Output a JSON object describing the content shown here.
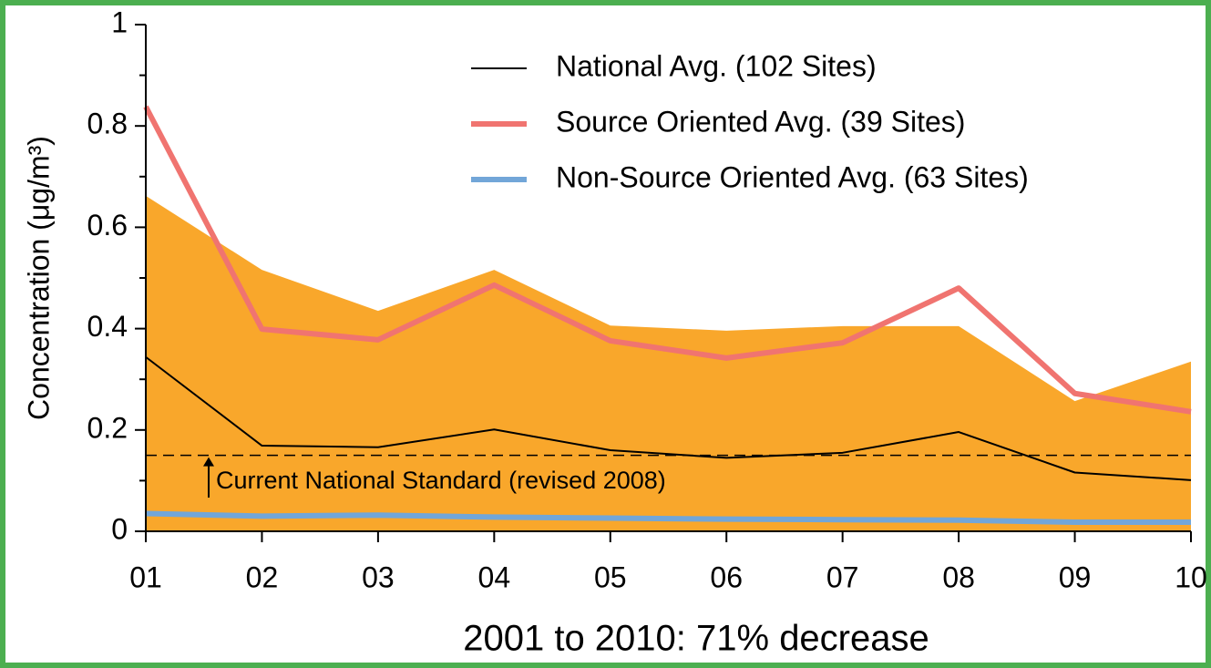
{
  "chart_data": {
    "type": "line",
    "x_label": "2001 to 2010: 71% decrease",
    "y_label": "Concentration (μg/m³)",
    "categories": [
      "01",
      "02",
      "03",
      "04",
      "05",
      "06",
      "07",
      "08",
      "09",
      "10"
    ],
    "ylim": [
      0,
      1
    ],
    "yticks": [
      0,
      0.2,
      0.4,
      0.6,
      0.8,
      1
    ],
    "minor_yticks": [
      0.1,
      0.3,
      0.5,
      0.7,
      0.9
    ],
    "band": {
      "color": "#f9a72b",
      "upper": [
        0.662,
        0.516,
        0.435,
        0.516,
        0.406,
        0.396,
        0.405,
        0.405,
        0.257,
        0.335
      ],
      "lower": [
        0,
        0,
        0,
        0,
        0,
        0,
        0,
        0,
        0,
        0
      ]
    },
    "series": [
      {
        "name": "National Avg. (102 Sites)",
        "color": "#000000",
        "width": 2,
        "values": [
          0.344,
          0.169,
          0.166,
          0.201,
          0.16,
          0.145,
          0.155,
          0.196,
          0.116,
          0.101
        ]
      },
      {
        "name": "Source Oriented Avg. (39 Sites)",
        "color": "#f07470",
        "width": 6,
        "values": [
          0.838,
          0.399,
          0.378,
          0.486,
          0.376,
          0.342,
          0.372,
          0.48,
          0.272,
          0.236
        ]
      },
      {
        "name": "Non-Source Oriented Avg. (63 Sites)",
        "color": "#72a6d8",
        "width": 6,
        "values": [
          0.035,
          0.03,
          0.032,
          0.028,
          0.026,
          0.024,
          0.023,
          0.022,
          0.018,
          0.018
        ]
      }
    ],
    "reference_line": {
      "value": 0.15,
      "label": "Current National Standard (revised 2008)"
    }
  }
}
